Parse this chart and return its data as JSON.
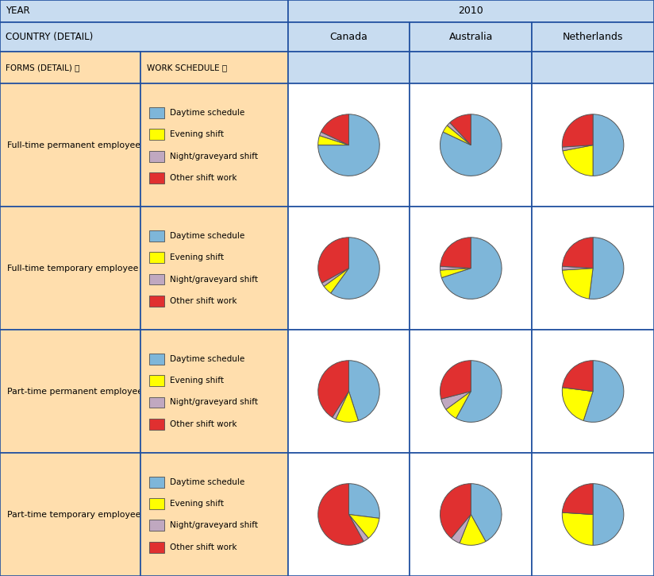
{
  "title_year": "2010",
  "countries": [
    "Canada",
    "Australia",
    "Netherlands"
  ],
  "row_labels": [
    "Full-time permanent employee",
    "Full-time temporary employee",
    "Part-time permanent employee",
    "Part-time temporary employee"
  ],
  "legend_labels": [
    "Daytime schedule",
    "Evening shift",
    "Night/graveyard shift",
    "Other shift work"
  ],
  "colors": [
    "#7EB6D9",
    "#FFFF00",
    "#C0A8C0",
    "#E03030"
  ],
  "pie_data": {
    "Full-time permanent employee": {
      "Canada": [
        75,
        5,
        2,
        18
      ],
      "Australia": [
        82,
        4,
        2,
        12
      ],
      "Netherlands": [
        50,
        22,
        2,
        26
      ]
    },
    "Full-time temporary employee": {
      "Canada": [
        60,
        5,
        2,
        33
      ],
      "Australia": [
        70,
        4,
        2,
        24
      ],
      "Netherlands": [
        52,
        22,
        2,
        24
      ]
    },
    "Part-time permanent employee": {
      "Canada": [
        45,
        12,
        2,
        41
      ],
      "Australia": [
        58,
        7,
        6,
        29
      ],
      "Netherlands": [
        55,
        22,
        0,
        23
      ]
    },
    "Part-time temporary employee": {
      "Canada": [
        27,
        12,
        3,
        58
      ],
      "Australia": [
        42,
        14,
        5,
        39
      ],
      "Netherlands": [
        50,
        26,
        0,
        24
      ]
    }
  },
  "start_angles": {
    "Full-time permanent employee": {
      "Canada": 90,
      "Australia": 90,
      "Netherlands": 90
    },
    "Full-time temporary employee": {
      "Canada": 90,
      "Australia": 90,
      "Netherlands": 90
    },
    "Part-time permanent employee": {
      "Canada": 90,
      "Australia": 90,
      "Netherlands": 90
    },
    "Part-time temporary employee": {
      "Canada": 90,
      "Australia": 90,
      "Netherlands": 90
    }
  },
  "bg_orange": "#FFDEAD",
  "bg_blue_light": "#C8DCF0",
  "bg_white": "#FFFFFF",
  "border_color": "#2050A0",
  "fig_width": 8.24,
  "fig_height": 7.25
}
